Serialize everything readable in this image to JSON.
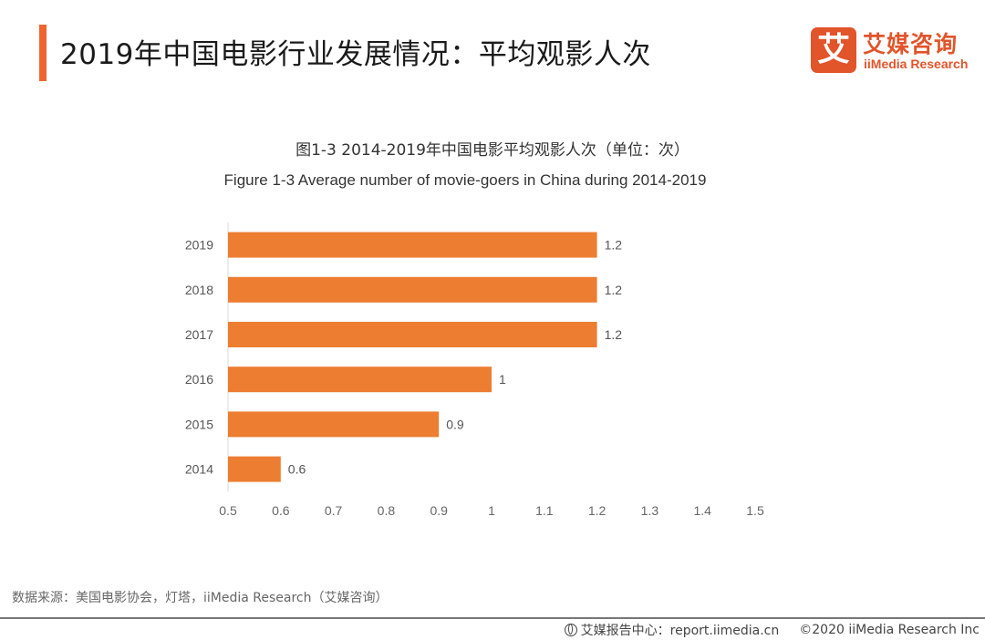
{
  "header": {
    "title": "2019年中国电影行业发展情况：平均观影人次",
    "accent_color": "#f0642f"
  },
  "logo": {
    "glyph": "艾",
    "name_cn": "艾媒咨询",
    "name_en": "iiMedia Research",
    "color": "#e2542a"
  },
  "chart_data": {
    "type": "bar",
    "orientation": "horizontal",
    "title": "图1-3 2014-2019年中国电影平均观影人次（单位：次）",
    "subtitle": "Figure 1-3 Average number of movie-goers in China during 2014-2019",
    "categories": [
      "2019",
      "2018",
      "2017",
      "2016",
      "2015",
      "2014"
    ],
    "values": [
      1.2,
      1.2,
      1.2,
      1,
      0.9,
      0.6
    ],
    "data_labels": [
      "1.2",
      "1.2",
      "1.2",
      "1",
      "0.9",
      "0.6"
    ],
    "xlim": [
      0.5,
      1.5
    ],
    "x_ticks": [
      "0.5",
      "0.6",
      "0.7",
      "0.8",
      "0.9",
      "1",
      "1.1",
      "1.2",
      "1.3",
      "1.4",
      "1.5"
    ],
    "xlabel": "",
    "ylabel": "",
    "grid": false,
    "legend": "none",
    "bar_color": "#ed7d31"
  },
  "source": "数据来源：美国电影协会，灯塔，iiMedia Research（艾媒咨询）",
  "footer": {
    "report_center": "艾媒报告中心：report.iimedia.cn",
    "copyright": "©2020  iiMedia Research  Inc"
  }
}
